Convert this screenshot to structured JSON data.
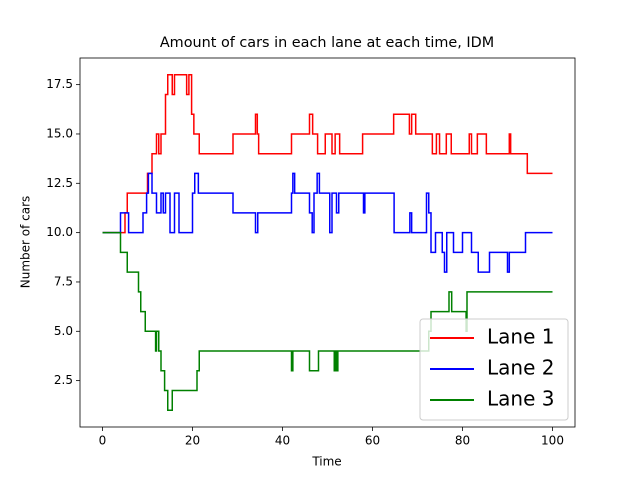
{
  "chart_data": {
    "type": "step-line",
    "title": "Amount of cars in each lane at each time, IDM",
    "xlabel": "Time",
    "ylabel": "Number of cars",
    "xlim": [
      -5,
      105
    ],
    "ylim": [
      0.15,
      18.85
    ],
    "xticks": [
      0,
      20,
      40,
      60,
      80,
      100
    ],
    "yticks": [
      2.5,
      {
        "value": 5,
        "label": "5.0"
      },
      7.5,
      {
        "value": 10,
        "label": "10.0"
      },
      12.5,
      {
        "value": 15,
        "label": "15.0"
      },
      17.5
    ],
    "legend": "lower right",
    "series": [
      {
        "name": "Lane 1",
        "color": "#ff0000",
        "x": [
          0,
          5,
          5.5,
          10,
          11,
          12,
          12.5,
          13,
          14,
          14.5,
          15.5,
          16,
          18.7,
          19.2,
          19.8,
          20.3,
          21.5,
          29,
          34,
          34.4,
          34.7,
          42,
          46,
          46.7,
          47.8,
          49.5,
          51,
          51.7,
          52.7,
          57.8,
          64.7,
          68.2,
          68.7,
          69.6,
          73.3,
          74.2,
          74.9,
          76.4,
          77.5,
          81.5,
          82,
          83.3,
          85.3,
          90.4,
          90.7,
          94.4,
          100
        ],
        "values": [
          10,
          11,
          12,
          13,
          14,
          15,
          14,
          15,
          17,
          18,
          17,
          18,
          17,
          18,
          16,
          15,
          14,
          15,
          16,
          15,
          14,
          15,
          16,
          15,
          14,
          15,
          14,
          15,
          14,
          15,
          16,
          15,
          16,
          15,
          14,
          15,
          14,
          15,
          14,
          15,
          14,
          15,
          14,
          15,
          14,
          13,
          13
        ]
      },
      {
        "name": "Lane 2",
        "color": "#0000ff",
        "x": [
          0,
          4,
          5.8,
          9,
          9.8,
          10.2,
          11,
          12,
          13,
          13.5,
          14,
          15,
          16,
          17,
          20,
          20.5,
          21.3,
          29,
          34,
          34.5,
          42,
          42.3,
          42.7,
          46,
          46.6,
          47,
          47.7,
          48.2,
          50.5,
          51,
          52,
          52.5,
          58,
          58.3,
          64.8,
          68.3,
          68.7,
          72,
          72.5,
          73,
          74,
          75.5,
          76,
          76.5,
          78,
          80,
          82,
          83.5,
          86,
          90,
          90.4,
          94,
          100
        ],
        "values": [
          10,
          11,
          10,
          11,
          12,
          13,
          12,
          11,
          12,
          11,
          12,
          10,
          12,
          10,
          12,
          13,
          12,
          11,
          10,
          11,
          12,
          13,
          12,
          11,
          10,
          12,
          13,
          12,
          10,
          12,
          11,
          12,
          11,
          12,
          10,
          11,
          10,
          12,
          11,
          9,
          10,
          9,
          8,
          10,
          9,
          10,
          9,
          8,
          9,
          8,
          9,
          10,
          10
        ]
      },
      {
        "name": "Lane 3",
        "color": "#008000",
        "x": [
          0,
          4,
          5.5,
          8,
          8.5,
          9.5,
          11.8,
          12,
          12.5,
          13,
          13.8,
          14.5,
          15.5,
          21,
          21.5,
          42,
          42.3,
          46,
          48,
          51.5,
          51.8,
          52,
          52.3,
          72.5,
          73,
          77,
          77.6,
          80.8,
          81,
          100
        ],
        "values": [
          10,
          9,
          8,
          7,
          6,
          5,
          4,
          5,
          4,
          3,
          2,
          1,
          2,
          3,
          4,
          3,
          4,
          3,
          4,
          3,
          4,
          3,
          4,
          5,
          6,
          7,
          6,
          5,
          7,
          7
        ]
      }
    ]
  }
}
